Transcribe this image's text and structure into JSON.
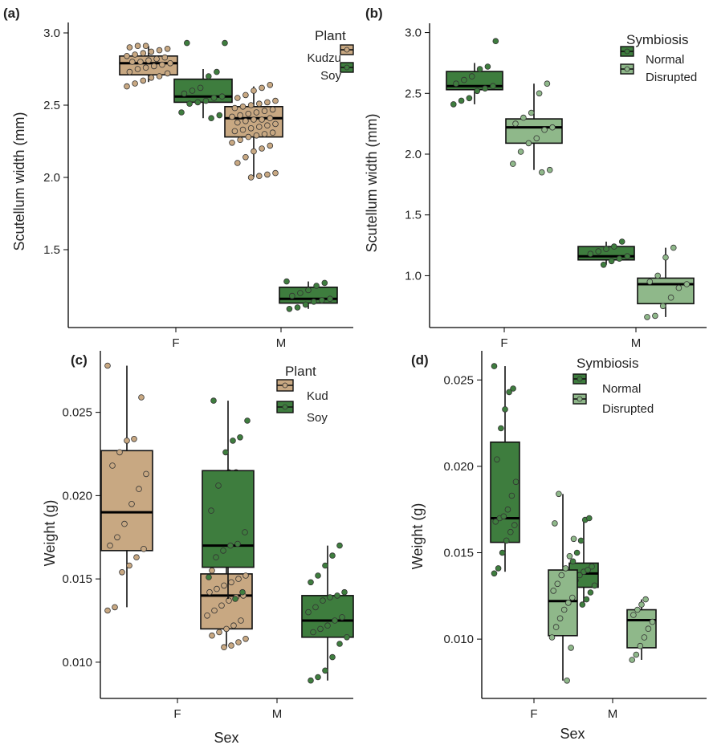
{
  "colors": {
    "kudzu": "#c8a882",
    "soy": "#3e7d3e",
    "normal": "#3e7d3e",
    "disrupted": "#8fb88a",
    "outline": "#111111"
  },
  "chart_data": [
    {
      "panel": "(a)",
      "type": "box",
      "categories": [
        "F",
        "M"
      ],
      "xlabel": "",
      "ylabel": "Scutellum width (mm)",
      "ylim": [
        0.95,
        3.05
      ],
      "yticks": [
        "1.5",
        "2.0",
        "2.5",
        "3.0"
      ],
      "grid": false,
      "legend": {
        "title": "Plant",
        "position": "top-right"
      },
      "series": [
        {
          "name": "Kudzu",
          "color_key": "kudzu",
          "boxes": [
            {
              "category": "F",
              "min": 2.66,
              "q1": 2.71,
              "median": 2.79,
              "q3": 2.84,
              "max": 2.91,
              "points": [
                2.63,
                2.65,
                2.67,
                2.69,
                2.7,
                2.72,
                2.73,
                2.75,
                2.76,
                2.77,
                2.78,
                2.79,
                2.8,
                2.8,
                2.81,
                2.82,
                2.83,
                2.84,
                2.85,
                2.86,
                2.87,
                2.88,
                2.89,
                2.9,
                2.91,
                2.91
              ]
            },
            {
              "category": "M",
              "min": 2.0,
              "q1": 2.28,
              "median": 2.41,
              "q3": 2.49,
              "max": 2.63,
              "points": [
                2.0,
                2.01,
                2.02,
                2.03,
                2.1,
                2.14,
                2.18,
                2.2,
                2.22,
                2.24,
                2.26,
                2.28,
                2.29,
                2.3,
                2.31,
                2.32,
                2.33,
                2.34,
                2.35,
                2.36,
                2.37,
                2.38,
                2.39,
                2.4,
                2.4,
                2.41,
                2.42,
                2.43,
                2.44,
                2.45,
                2.46,
                2.47,
                2.48,
                2.49,
                2.5,
                2.51,
                2.52,
                2.53,
                2.55,
                2.57,
                2.6,
                2.62,
                2.64
              ]
            }
          ]
        },
        {
          "name": "Soy",
          "color_key": "soy",
          "boxes": [
            {
              "category": "F",
              "min": 2.41,
              "q1": 2.52,
              "median": 2.56,
              "q3": 2.68,
              "max": 2.75,
              "points": [
                2.41,
                2.43,
                2.45,
                2.51,
                2.52,
                2.53,
                2.55,
                2.56,
                2.58,
                2.6,
                2.62,
                2.7,
                2.73,
                2.93,
                2.93
              ]
            },
            {
              "category": "M",
              "min": 1.09,
              "q1": 1.13,
              "median": 1.16,
              "q3": 1.24,
              "max": 1.28,
              "points": [
                1.09,
                1.1,
                1.12,
                1.14,
                1.15,
                1.16,
                1.18,
                1.2,
                1.22,
                1.25,
                1.27,
                1.28
              ]
            }
          ]
        }
      ]
    },
    {
      "panel": "(b)",
      "type": "box",
      "categories": [
        "F",
        "M"
      ],
      "xlabel": "",
      "ylabel": "Scutellum width (mm)",
      "ylim": [
        0.6,
        3.05
      ],
      "yticks": [
        "1.0",
        "1.5",
        "2.0",
        "2.5",
        "3.0"
      ],
      "grid": false,
      "legend": {
        "title": "Symbiosis",
        "position": "top-right"
      },
      "series": [
        {
          "name": "Normal",
          "color_key": "normal",
          "boxes": [
            {
              "category": "F",
              "min": 2.41,
              "q1": 2.53,
              "median": 2.56,
              "q3": 2.68,
              "max": 2.75,
              "points": [
                2.41,
                2.44,
                2.46,
                2.52,
                2.54,
                2.56,
                2.58,
                2.61,
                2.64,
                2.7,
                2.72,
                2.93
              ]
            },
            {
              "category": "M",
              "min": 1.09,
              "q1": 1.13,
              "median": 1.16,
              "q3": 1.24,
              "max": 1.28,
              "points": [
                1.09,
                1.12,
                1.14,
                1.16,
                1.18,
                1.2,
                1.22,
                1.24,
                1.28
              ]
            }
          ]
        },
        {
          "name": "Disrupted",
          "color_key": "disrupted",
          "boxes": [
            {
              "category": "F",
              "min": 1.87,
              "q1": 2.09,
              "median": 2.22,
              "q3": 2.29,
              "max": 2.58,
              "points": [
                1.85,
                1.87,
                1.92,
                2.02,
                2.09,
                2.13,
                2.2,
                2.22,
                2.25,
                2.3,
                2.34,
                2.5,
                2.58
              ]
            },
            {
              "category": "M",
              "min": 0.66,
              "q1": 0.77,
              "median": 0.93,
              "q3": 0.98,
              "max": 1.23,
              "points": [
                0.66,
                0.67,
                0.75,
                0.82,
                0.9,
                0.93,
                0.95,
                1.0,
                1.15,
                1.23
              ]
            }
          ]
        }
      ]
    },
    {
      "panel": "(c)",
      "type": "box",
      "categories": [
        "F",
        "M"
      ],
      "xlabel": "Sex",
      "ylabel": "Weight (g)",
      "ylim": [
        0.0085,
        0.0285
      ],
      "yticks": [
        "0.010",
        "0.015",
        "0.020",
        "0.025"
      ],
      "grid": false,
      "legend": {
        "title": "Plant",
        "position": "top-right"
      },
      "series": [
        {
          "name": "Kud",
          "color_key": "kudzu",
          "boxes": [
            {
              "category": "F",
              "min": 0.0133,
              "q1": 0.0167,
              "median": 0.019,
              "q3": 0.0227,
              "max": 0.0278,
              "points": [
                0.0131,
                0.0133,
                0.0154,
                0.0158,
                0.0163,
                0.0168,
                0.017,
                0.0175,
                0.0183,
                0.0195,
                0.0204,
                0.0213,
                0.0218,
                0.0226,
                0.0233,
                0.0234,
                0.0259,
                0.0278
              ]
            },
            {
              "category": "M",
              "min": 0.0109,
              "q1": 0.012,
              "median": 0.014,
              "q3": 0.0153,
              "max": 0.0185,
              "points": [
                0.0109,
                0.011,
                0.0112,
                0.0114,
                0.0116,
                0.0118,
                0.012,
                0.0122,
                0.0125,
                0.0128,
                0.0131,
                0.0134,
                0.0137,
                0.0139,
                0.014,
                0.0142,
                0.0144,
                0.0146,
                0.0148,
                0.015,
                0.0152,
                0.0155,
                0.0159,
                0.0162,
                0.0165,
                0.0172,
                0.0178,
                0.0181,
                0.0185,
                0.0214,
                0.0214
              ]
            }
          ]
        },
        {
          "name": "Soy",
          "color_key": "soy",
          "boxes": [
            {
              "category": "F",
              "min": 0.0138,
              "q1": 0.0157,
              "median": 0.017,
              "q3": 0.0215,
              "max": 0.0257,
              "points": [
                0.0138,
                0.0142,
                0.0151,
                0.0163,
                0.0167,
                0.017,
                0.0171,
                0.0178,
                0.0191,
                0.0206,
                0.0226,
                0.0233,
                0.0235,
                0.0245,
                0.0257
              ]
            },
            {
              "category": "M",
              "min": 0.0089,
              "q1": 0.0115,
              "median": 0.0125,
              "q3": 0.014,
              "max": 0.017,
              "points": [
                0.0089,
                0.0091,
                0.0095,
                0.0103,
                0.0111,
                0.0115,
                0.0118,
                0.012,
                0.0122,
                0.0125,
                0.0127,
                0.013,
                0.0133,
                0.0137,
                0.0139,
                0.014,
                0.0142,
                0.0148,
                0.0152,
                0.0158,
                0.0164,
                0.017
              ]
            }
          ]
        }
      ]
    },
    {
      "panel": "(d)",
      "type": "box",
      "categories": [
        "F",
        "M"
      ],
      "xlabel": "Sex",
      "ylabel": "Weight (g)",
      "ylim": [
        0.0068,
        0.0265
      ],
      "yticks": [
        "0.010",
        "0.015",
        "0.020",
        "0.025"
      ],
      "grid": false,
      "legend": {
        "title": "Symbiosis",
        "position": "top-right"
      },
      "series": [
        {
          "name": "Normal",
          "color_key": "normal",
          "boxes": [
            {
              "category": "F",
              "min": 0.0139,
              "q1": 0.0156,
              "median": 0.017,
              "q3": 0.0214,
              "max": 0.0258,
              "points": [
                0.0138,
                0.0141,
                0.015,
                0.0157,
                0.0162,
                0.0166,
                0.0168,
                0.017,
                0.0171,
                0.0175,
                0.0183,
                0.0191,
                0.0204,
                0.0222,
                0.0233,
                0.0243,
                0.0245,
                0.0258
              ]
            },
            {
              "category": "M",
              "min": 0.0121,
              "q1": 0.013,
              "median": 0.0138,
              "q3": 0.0144,
              "max": 0.0169,
              "points": [
                0.012,
                0.0123,
                0.0127,
                0.0131,
                0.0134,
                0.0137,
                0.0139,
                0.014,
                0.0142,
                0.0145,
                0.015,
                0.0157,
                0.0169,
                0.017
              ]
            }
          ]
        },
        {
          "name": "Disrupted",
          "color_key": "disrupted",
          "boxes": [
            {
              "category": "F",
              "min": 0.0076,
              "q1": 0.0102,
              "median": 0.0122,
              "q3": 0.014,
              "max": 0.0184,
              "points": [
                0.0076,
                0.0095,
                0.0101,
                0.0107,
                0.0112,
                0.0117,
                0.0121,
                0.0124,
                0.0128,
                0.0132,
                0.0137,
                0.0141,
                0.0148,
                0.0158,
                0.0167,
                0.0184
              ]
            },
            {
              "category": "M",
              "min": 0.0088,
              "q1": 0.0095,
              "median": 0.0111,
              "q3": 0.0117,
              "max": 0.0123,
              "points": [
                0.0088,
                0.0091,
                0.0096,
                0.0101,
                0.0106,
                0.011,
                0.0114,
                0.0117,
                0.012,
                0.0123
              ]
            }
          ]
        }
      ]
    }
  ]
}
